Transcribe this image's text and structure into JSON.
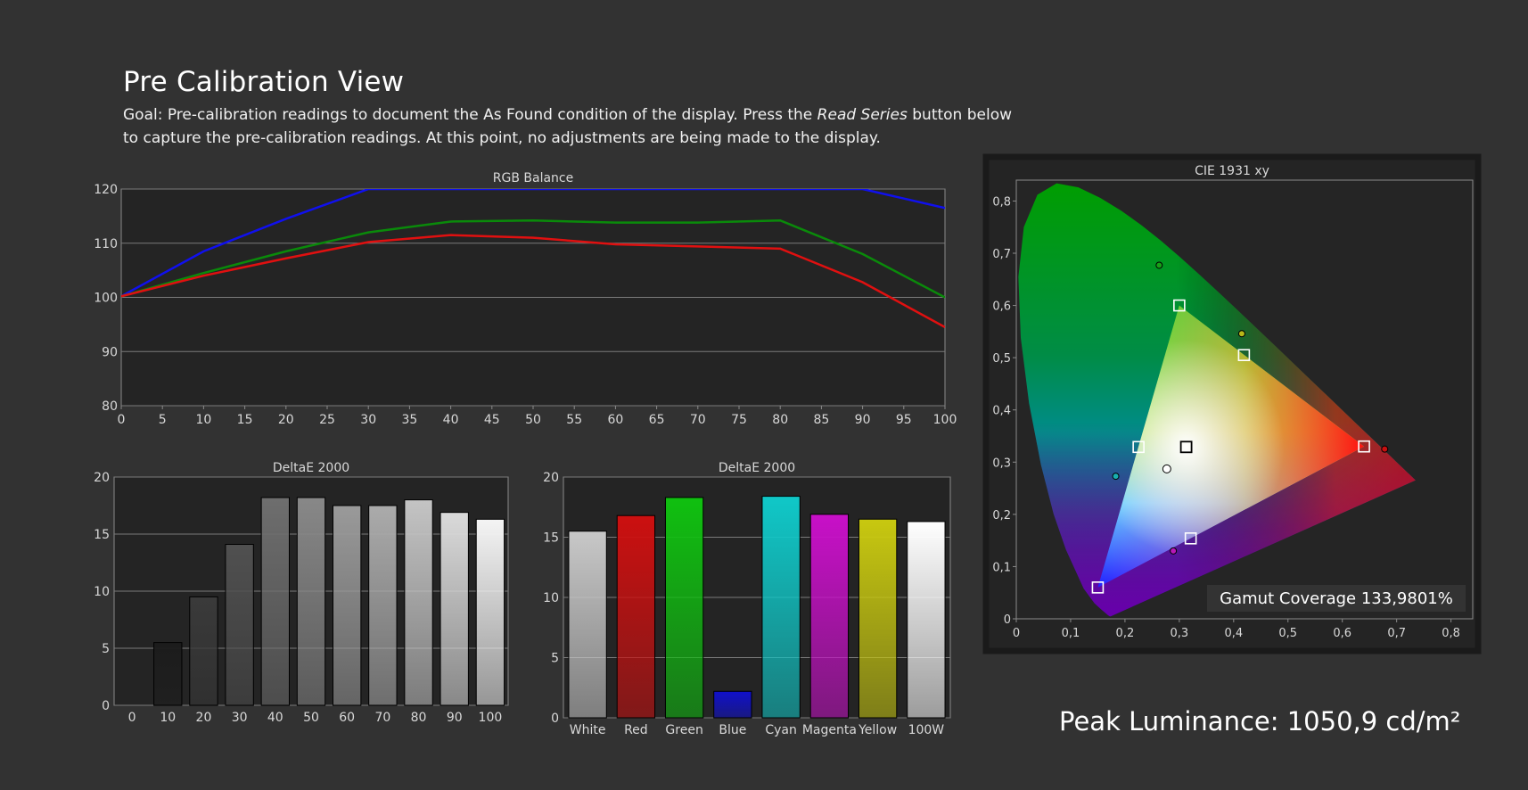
{
  "page": {
    "title": "Pre Calibration View",
    "goal_pre": "Goal: Pre-calibration readings to document the As Found condition of the display. Press the ",
    "goal_em": "Read Series",
    "goal_post": " button below to capture the pre-calibration readings. At this point, no adjustments are being made to the display.",
    "peak_luminance": "Peak Luminance: 1050,9 cd/m²"
  },
  "chart_data": [
    {
      "id": "rgb",
      "type": "line",
      "title": "RGB Balance",
      "x": [
        0,
        10,
        20,
        30,
        40,
        50,
        60,
        70,
        80,
        90,
        100
      ],
      "xticks": [
        "0",
        "5",
        "10",
        "15",
        "20",
        "25",
        "30",
        "35",
        "40",
        "45",
        "50",
        "55",
        "60",
        "65",
        "70",
        "75",
        "80",
        "85",
        "90",
        "95",
        "100"
      ],
      "yticks": [
        "80",
        "90",
        "100",
        "110",
        "120"
      ],
      "xlim": [
        0,
        100
      ],
      "ylim": [
        80,
        120
      ],
      "grid": true,
      "series": [
        {
          "color": "#1010ee",
          "values": [
            100.2,
            108.5,
            114.5,
            120,
            120,
            120,
            120,
            120,
            120,
            120,
            116.5
          ]
        },
        {
          "color": "#0a8a0a",
          "values": [
            100.2,
            104.5,
            108.5,
            112,
            114,
            114.2,
            113.8,
            113.8,
            114.2,
            108,
            100
          ]
        },
        {
          "color": "#e01010",
          "values": [
            100.2,
            104,
            107.2,
            110.2,
            111.5,
            111,
            109.8,
            109.4,
            109,
            102.8,
            94.5
          ]
        }
      ]
    },
    {
      "id": "grayscale",
      "type": "bar",
      "title": "DeltaE 2000",
      "categories": [
        "0",
        "10",
        "20",
        "30",
        "40",
        "50",
        "60",
        "70",
        "80",
        "90",
        "100"
      ],
      "values": [
        0,
        5.5,
        9.5,
        14.1,
        18.2,
        18.2,
        17.5,
        17.5,
        18,
        16.9,
        16.3
      ],
      "yticks": [
        "0",
        "5",
        "10",
        "15",
        "20"
      ],
      "ylim": [
        0,
        20
      ],
      "colors": [
        "#000000",
        "#1c1c1c",
        "#3a3a3a",
        "#505050",
        "#6e6e6e",
        "#888888",
        "#9a9a9a",
        "#ababab",
        "#c4c4c4",
        "#dadada",
        "#f4f4f4"
      ]
    },
    {
      "id": "colors",
      "type": "bar",
      "title": "DeltaE 2000",
      "categories": [
        "White",
        "Red",
        "Green",
        "Blue",
        "Cyan",
        "Magenta",
        "Yellow",
        "100W"
      ],
      "values": [
        15.5,
        16.8,
        18.3,
        2.2,
        18.4,
        16.9,
        16.5,
        16.3
      ],
      "yticks": [
        "0",
        "5",
        "10",
        "15",
        "20"
      ],
      "ylim": [
        0,
        20
      ],
      "colors": [
        "#c8c8c8",
        "#cc1010",
        "#10c010",
        "#1010cc",
        "#10c8c8",
        "#c810c8",
        "#c8c810",
        "#ffffff"
      ]
    },
    {
      "id": "cie",
      "type": "scatter",
      "title": "CIE 1931 xy",
      "xticks": [
        "0",
        "0,1",
        "0,2",
        "0,3",
        "0,4",
        "0,5",
        "0,6",
        "0,7",
        "0,8"
      ],
      "yticks": [
        "0",
        "0,1",
        "0,2",
        "0,3",
        "0,4",
        "0,5",
        "0,6",
        "0,7",
        "0,8"
      ],
      "xlim": [
        0,
        0.84
      ],
      "ylim": [
        0,
        0.84
      ],
      "locus": [
        [
          0.1741,
          0.005
        ],
        [
          0.1733,
          0.0048
        ],
        [
          0.1726,
          0.0048
        ],
        [
          0.1714,
          0.0051
        ],
        [
          0.1689,
          0.0069
        ],
        [
          0.1644,
          0.0109
        ],
        [
          0.1566,
          0.0177
        ],
        [
          0.144,
          0.0297
        ],
        [
          0.1241,
          0.0578
        ],
        [
          0.0913,
          0.1327
        ],
        [
          0.0687,
          0.2007
        ],
        [
          0.0454,
          0.295
        ],
        [
          0.0235,
          0.4127
        ],
        [
          0.0082,
          0.5384
        ],
        [
          0.0039,
          0.6548
        ],
        [
          0.0139,
          0.7502
        ],
        [
          0.0389,
          0.812
        ],
        [
          0.0743,
          0.8338
        ],
        [
          0.1142,
          0.8262
        ],
        [
          0.1547,
          0.8059
        ],
        [
          0.1929,
          0.7816
        ],
        [
          0.2296,
          0.7543
        ],
        [
          0.2658,
          0.7243
        ],
        [
          0.3016,
          0.6923
        ],
        [
          0.3373,
          0.6589
        ],
        [
          0.3731,
          0.6245
        ],
        [
          0.4087,
          0.5896
        ],
        [
          0.4441,
          0.5547
        ],
        [
          0.4788,
          0.5202
        ],
        [
          0.5125,
          0.4866
        ],
        [
          0.5448,
          0.4544
        ],
        [
          0.5752,
          0.4242
        ],
        [
          0.6029,
          0.3965
        ],
        [
          0.627,
          0.3725
        ],
        [
          0.6482,
          0.3514
        ],
        [
          0.6658,
          0.334
        ],
        [
          0.6801,
          0.3197
        ],
        [
          0.6915,
          0.3083
        ],
        [
          0.7006,
          0.2993
        ],
        [
          0.7079,
          0.292
        ],
        [
          0.714,
          0.2859
        ],
        [
          0.719,
          0.2809
        ],
        [
          0.723,
          0.277
        ],
        [
          0.726,
          0.274
        ],
        [
          0.7347,
          0.2653
        ]
      ],
      "gamut": [
        [
          0.64,
          0.33
        ],
        [
          0.3,
          0.6
        ],
        [
          0.15,
          0.06
        ]
      ],
      "targets": [
        [
          0.64,
          0.33
        ],
        [
          0.3,
          0.6
        ],
        [
          0.15,
          0.06
        ],
        [
          0.225,
          0.329
        ],
        [
          0.321,
          0.154
        ],
        [
          0.419,
          0.505
        ]
      ],
      "white_target": [
        0.3127,
        0.329
      ],
      "measured": [
        {
          "x": 0.678,
          "y": 0.325,
          "color": "#c81010"
        },
        {
          "x": 0.263,
          "y": 0.677,
          "color": "#18a018"
        },
        {
          "x": 0.183,
          "y": 0.273,
          "color": "#18b0b0"
        },
        {
          "x": 0.289,
          "y": 0.13,
          "color": "#b818b8"
        },
        {
          "x": 0.415,
          "y": 0.546,
          "color": "#b8b818"
        },
        {
          "x": 0.277,
          "y": 0.287,
          "color": "#ffffff"
        }
      ],
      "annotation": "Gamut Coverage 133,9801%"
    }
  ]
}
